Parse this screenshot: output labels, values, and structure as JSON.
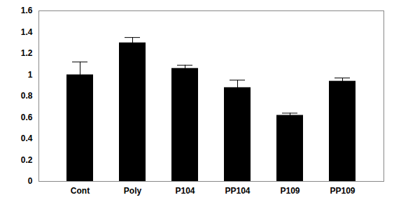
{
  "chart_data": {
    "type": "bar",
    "categories": [
      "Cont",
      "Poly",
      "P104",
      "PP104",
      "P109",
      "PP109"
    ],
    "values": [
      1.0,
      1.3,
      1.06,
      0.88,
      0.62,
      0.94
    ],
    "errors": [
      0.12,
      0.05,
      0.03,
      0.07,
      0.02,
      0.03
    ],
    "color": "#000000",
    "ylim": [
      0,
      1.6
    ],
    "yticks": [
      0,
      0.2,
      0.4,
      0.6,
      0.8,
      1,
      1.2,
      1.4,
      1.6
    ],
    "grid": false
  }
}
